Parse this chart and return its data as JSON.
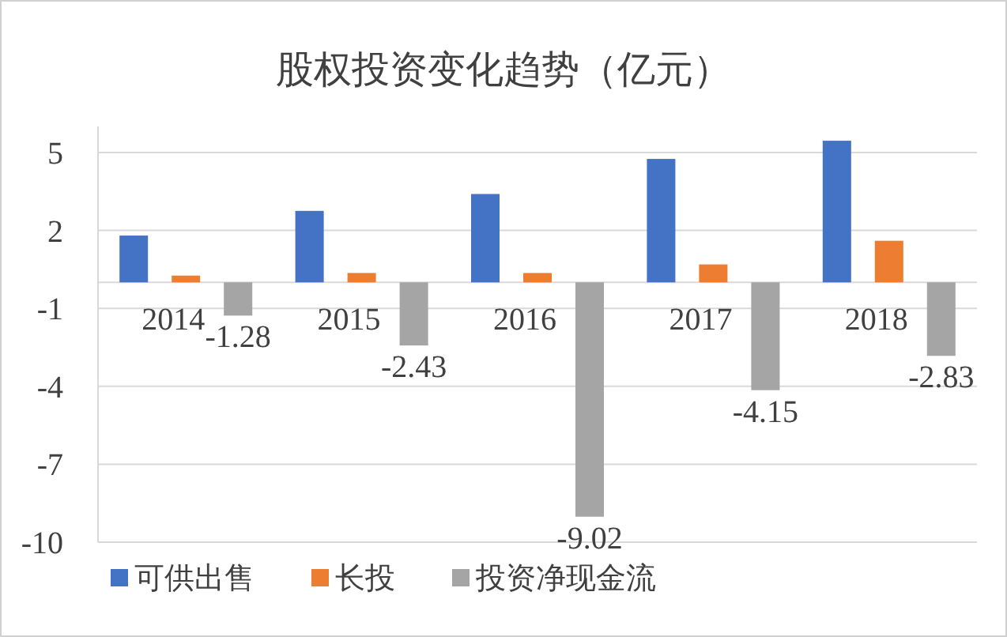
{
  "chart_data": {
    "type": "bar",
    "title": "股权投资变化趋势（亿元）",
    "categories": [
      "2014",
      "2015",
      "2016",
      "2017",
      "2018"
    ],
    "series": [
      {
        "name": "可供出售",
        "color": "#4472c4",
        "values": [
          1.8,
          2.75,
          3.4,
          4.75,
          5.45
        ]
      },
      {
        "name": "长投",
        "color": "#ed7d31",
        "values": [
          0.26,
          0.36,
          0.36,
          0.69,
          1.6
        ]
      },
      {
        "name": "投资净现金流",
        "color": "#a5a5a5",
        "values": [
          -1.28,
          -2.43,
          -9.02,
          -4.15,
          -2.83
        ],
        "value_labels": [
          "-1.28",
          "-2.43",
          "-9.02",
          "-4.15",
          "-2.83"
        ]
      }
    ],
    "ylim": [
      -10,
      6
    ],
    "yticks": [
      -10,
      -7,
      -4,
      -1,
      2,
      5
    ],
    "grid": "y",
    "legend": "bottom"
  }
}
